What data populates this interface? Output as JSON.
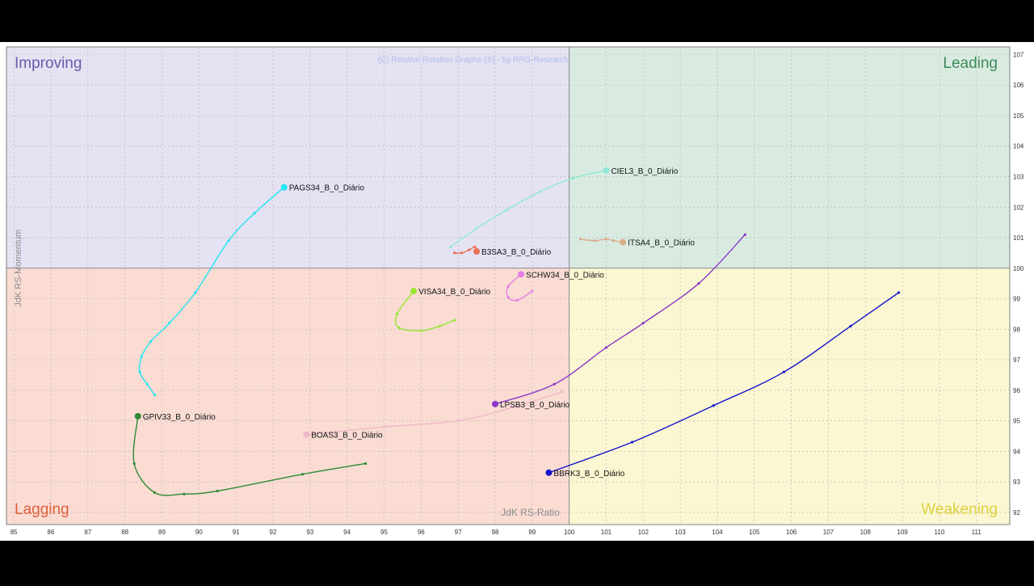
{
  "chart_data": {
    "type": "scatter",
    "title": "",
    "watermark": "(C) Relative Rotation Graphs (®) - by RRG-Research",
    "xlabel": "JdK RS-Ratio",
    "ylabel": "JdK RS-Momentum",
    "xlim": [
      84.8,
      111.9
    ],
    "ylim": [
      91.6,
      107.25
    ],
    "x_ticks": [
      85,
      86,
      87,
      88,
      89,
      90,
      91,
      92,
      93,
      94,
      95,
      96,
      97,
      98,
      99,
      100,
      101,
      102,
      103,
      104,
      105,
      106,
      107,
      108,
      109,
      110,
      111
    ],
    "y_ticks": [
      92,
      93,
      94,
      95,
      96,
      97,
      98,
      99,
      100,
      101,
      102,
      103,
      104,
      105,
      106,
      107
    ],
    "center": [
      100,
      100
    ],
    "grid": true,
    "quadrants": [
      {
        "name": "Improving",
        "color": "#e4e2f3",
        "label_color": "#6a5aaa"
      },
      {
        "name": "Leading",
        "color": "#d9ebe1",
        "label_color": "#3c8a59"
      },
      {
        "name": "Lagging",
        "color": "#fadcd3",
        "label_color": "#e0603c"
      },
      {
        "name": "Weakening",
        "color": "#fbf7d3",
        "label_color": "#dcd23c"
      }
    ],
    "series": [
      {
        "name": "PAGS34_B_0_Diário",
        "color": "#22e5f2",
        "points": [
          [
            88.8,
            95.85
          ],
          [
            88.6,
            96.2
          ],
          [
            88.4,
            96.6
          ],
          [
            88.45,
            97.1
          ],
          [
            88.7,
            97.6
          ],
          [
            89.2,
            98.2
          ],
          [
            89.9,
            99.2
          ],
          [
            90.8,
            100.9
          ],
          [
            91.5,
            101.8
          ],
          [
            92.3,
            102.65
          ]
        ]
      },
      {
        "name": "CIEL3_B_0_Diário",
        "color": "#8fe8d6",
        "points": [
          [
            96.8,
            100.7
          ],
          [
            97.5,
            101.3
          ],
          [
            98.3,
            101.9
          ],
          [
            99.2,
            102.5
          ],
          [
            100.1,
            102.95
          ],
          [
            101.0,
            103.2
          ]
        ]
      },
      {
        "name": "ITSA4_B_0_Diário",
        "color": "#d9ac8a",
        "points": [
          [
            100.3,
            100.95
          ],
          [
            100.7,
            100.9
          ],
          [
            101.0,
            100.95
          ],
          [
            101.2,
            100.9
          ],
          [
            101.45,
            100.85
          ]
        ]
      },
      {
        "name": "B3SA3_B_0_Diário",
        "color": "#ec6f53",
        "points": [
          [
            96.9,
            100.5
          ],
          [
            97.1,
            100.5
          ],
          [
            97.3,
            100.6
          ],
          [
            97.45,
            100.7
          ],
          [
            97.5,
            100.55
          ]
        ]
      },
      {
        "name": "SCHW34_B_0_Diário",
        "color": "#e67ee6",
        "points": [
          [
            99.0,
            99.25
          ],
          [
            98.6,
            98.95
          ],
          [
            98.35,
            99.05
          ],
          [
            98.35,
            99.4
          ],
          [
            98.7,
            99.8
          ]
        ]
      },
      {
        "name": "VISA34_B_0_Diário",
        "color": "#94e630",
        "points": [
          [
            96.9,
            98.3
          ],
          [
            96.5,
            98.1
          ],
          [
            96.0,
            97.95
          ],
          [
            95.4,
            98.05
          ],
          [
            95.35,
            98.5
          ],
          [
            95.8,
            99.25
          ]
        ]
      },
      {
        "name": "LPSB3_B_0_Diário",
        "color": "#8a38c8",
        "points": [
          [
            104.75,
            101.1
          ],
          [
            103.5,
            99.5
          ],
          [
            102.0,
            98.2
          ],
          [
            101.0,
            97.4
          ],
          [
            99.6,
            96.2
          ],
          [
            98.0,
            95.55
          ]
        ]
      },
      {
        "name": "BBRK3_B_0_Diário",
        "color": "#1414cc",
        "points": [
          [
            108.9,
            99.2
          ],
          [
            107.6,
            98.1
          ],
          [
            105.8,
            96.6
          ],
          [
            103.9,
            95.5
          ],
          [
            101.7,
            94.3
          ],
          [
            99.45,
            93.3
          ]
        ]
      },
      {
        "name": "BOAS3_B_0_Diário",
        "color": "#f0b8c8",
        "points": [
          [
            99.8,
            95.95
          ],
          [
            98.5,
            95.45
          ],
          [
            97.0,
            95.0
          ],
          [
            95.0,
            94.8
          ],
          [
            92.9,
            94.55
          ]
        ]
      },
      {
        "name": "GPIV33_B_0_Diário",
        "color": "#2e8a34",
        "points": [
          [
            94.5,
            93.6
          ],
          [
            92.8,
            93.25
          ],
          [
            90.5,
            92.7
          ],
          [
            89.6,
            92.6
          ],
          [
            88.8,
            92.65
          ],
          [
            88.25,
            93.6
          ],
          [
            88.35,
            95.15
          ]
        ]
      }
    ]
  }
}
